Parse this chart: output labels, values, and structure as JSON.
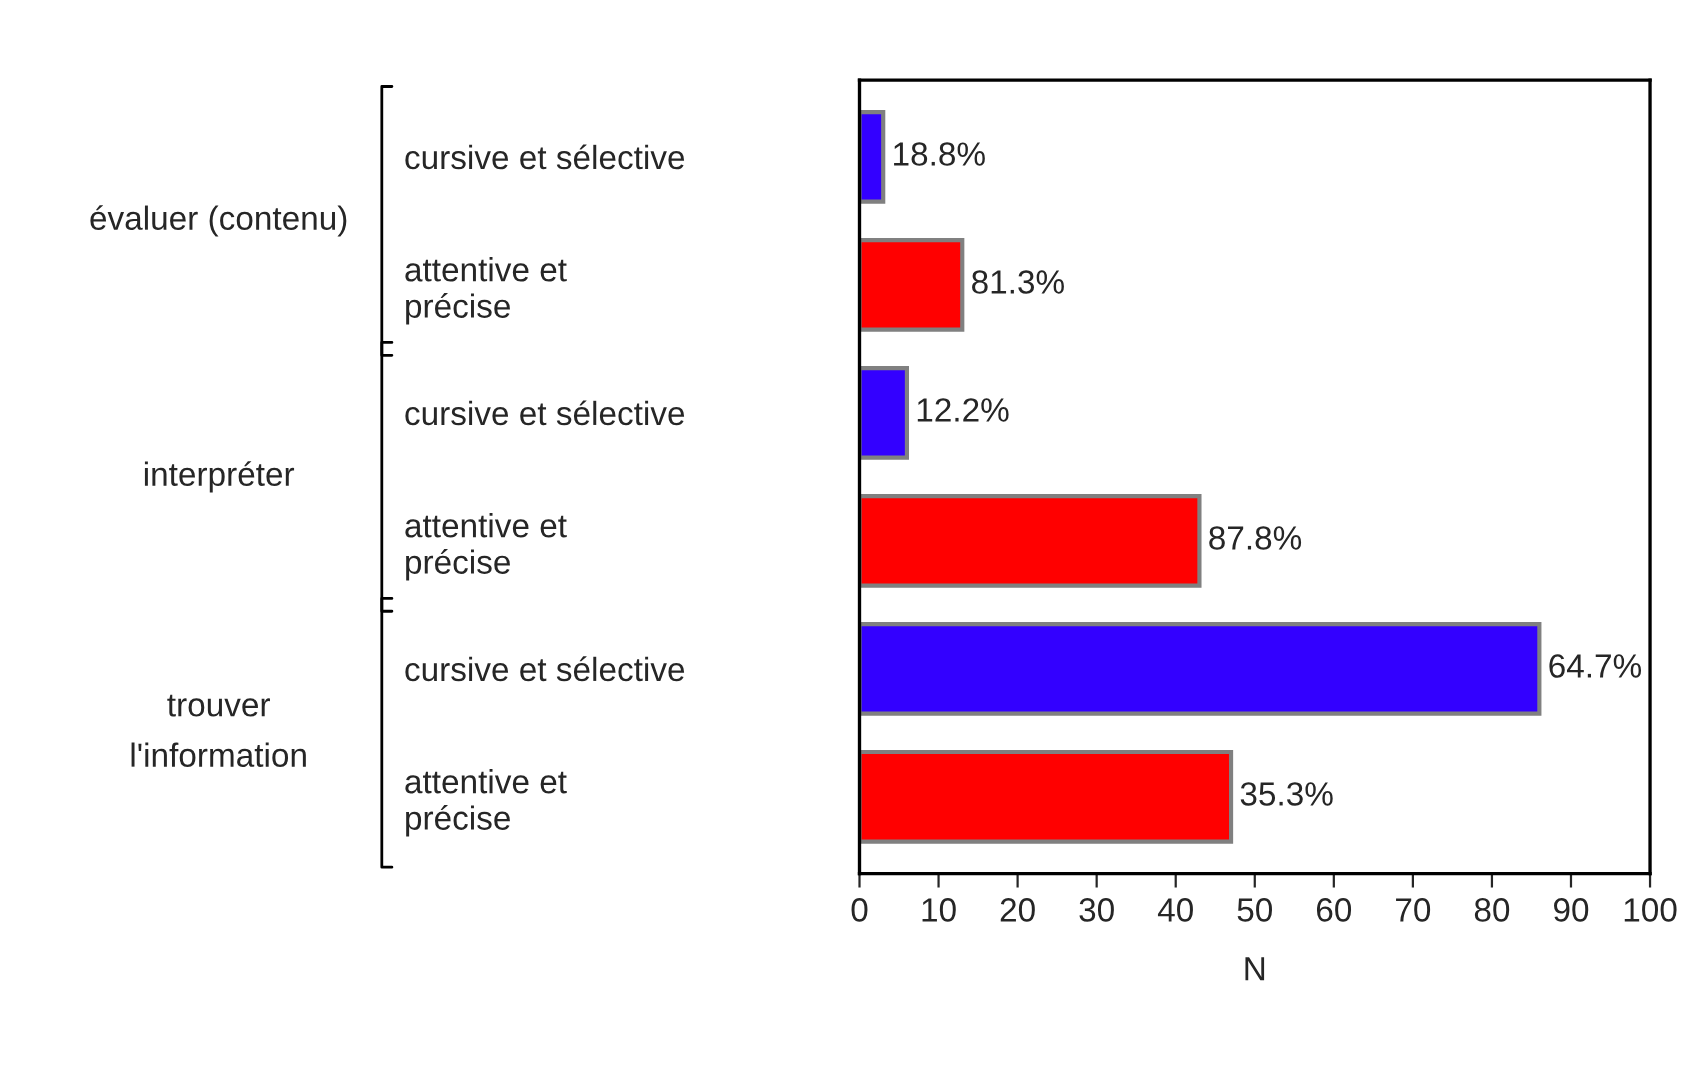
{
  "chart_data": {
    "type": "bar",
    "orientation": "horizontal",
    "xlabel": "N",
    "categories": [
      "cursive et sélective",
      "attentive et\nprécise",
      "cursive et sélective",
      "attentive et\nprécise",
      "cursive et sélective",
      "attentive et\nprécise"
    ],
    "values": [
      3,
      13,
      6,
      43,
      86,
      47
    ],
    "colors": [
      "#3300ff",
      "#ff0000",
      "#3300ff",
      "#ff0000",
      "#3300ff",
      "#ff0000"
    ],
    "xlim": [
      0,
      100
    ],
    "xticks": [
      0,
      10,
      20,
      30,
      40,
      50,
      60,
      70,
      80,
      90,
      100
    ],
    "annotations": [
      "évaluer (contenu)",
      "interpréter",
      "trouver\nl'information",
      {
        "text": "18.8%",
        "x": 3
      },
      {
        "text": "81.3%",
        "x": 13
      },
      {
        "text": "12.2%",
        "x": 6
      },
      {
        "text": "87.8%",
        "x": 43
      },
      {
        "text": "64.7%",
        "x": 86
      },
      {
        "text": "35.3%",
        "x": 47
      }
    ],
    "grid": false,
    "legend": false
  }
}
